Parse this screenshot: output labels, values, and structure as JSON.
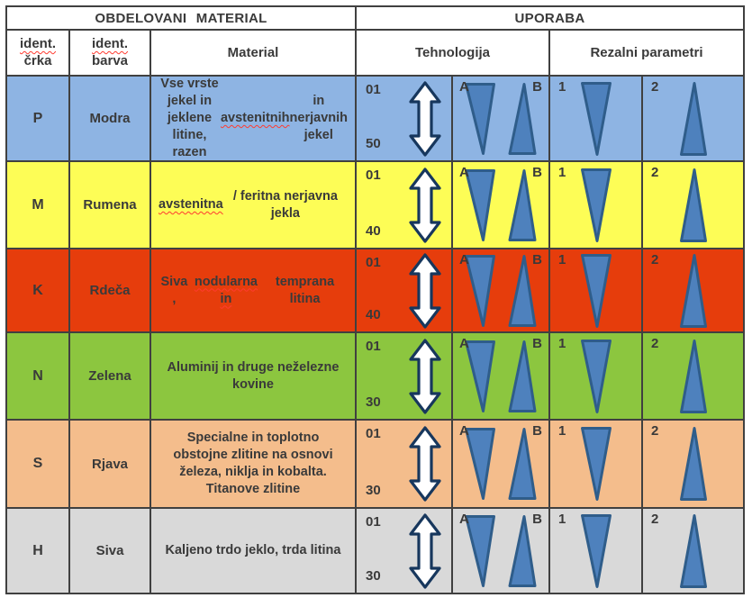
{
  "table": {
    "header": {
      "obdelovani": "OBDELOVANI MATERIAL",
      "uporaba": "UPORABA",
      "ident_crka": [
        "ident.",
        "črka"
      ],
      "ident_barva": [
        "ident.",
        "barva"
      ],
      "material": "Material",
      "tehnologija": "Tehnologija",
      "rezalni": "Rezalni parametri"
    },
    "labels": {
      "a": "A",
      "b": "B",
      "p1": "1",
      "p2": "2"
    },
    "rows": [
      {
        "letter": "P",
        "color_name": "Modra",
        "row_color": "#8EB4E3",
        "material": [
          {
            "t": "Vse vrste jekel in jeklene litine, razen "
          },
          {
            "t": "avstenitnih",
            "misspelled": true
          },
          {
            "t": " in nerjavnih jekel"
          }
        ],
        "tech_top": "01",
        "tech_bottom": "50"
      },
      {
        "letter": "M",
        "color_name": "Rumena",
        "row_color": "#FDFD56",
        "material": [
          {
            "t": "avstenitna",
            "misspelled": true
          },
          {
            "t": " / feritna nerjavna jekla"
          }
        ],
        "tech_top": "01",
        "tech_bottom": "40"
      },
      {
        "letter": "K",
        "color_name": "Rdeča",
        "row_color": "#E63D0C",
        "material": [
          {
            "t": "Siva , "
          },
          {
            "t": "nodularna in",
            "misspelled": true
          },
          {
            "t": " temprana litina"
          }
        ],
        "tech_top": "01",
        "tech_bottom": "40"
      },
      {
        "letter": "N",
        "color_name": "Zelena",
        "row_color": "#8CC63F",
        "material": [
          {
            "t": "Aluminij in druge neželezne kovine"
          }
        ],
        "tech_top": "01",
        "tech_bottom": "30"
      },
      {
        "letter": "S",
        "color_name": "Rjava",
        "row_color": "#F4BD8C",
        "material": [
          {
            "t": "Specialne in toplotno obstojne zlitine na osnovi železa, niklja in kobalta. Titanove zlitine"
          }
        ],
        "tech_top": "01",
        "tech_bottom": "30"
      },
      {
        "letter": "H",
        "color_name": "Siva",
        "row_color": "#D9D9D9",
        "material": [
          {
            "t": "Kaljeno trdo jeklo, trda litina"
          }
        ],
        "tech_top": "01",
        "tech_bottom": "30"
      }
    ],
    "colors": {
      "grid_line": "#404040",
      "text": "#3A3A3A",
      "triangle_fill": "#4E81BD",
      "triangle_stroke": "#2F5D8A",
      "arrow_fill": "#FFFFFF",
      "arrow_stroke": "#17375D",
      "misspell_underline": "#FF3B30",
      "header_bg": "#FFFFFF"
    }
  }
}
